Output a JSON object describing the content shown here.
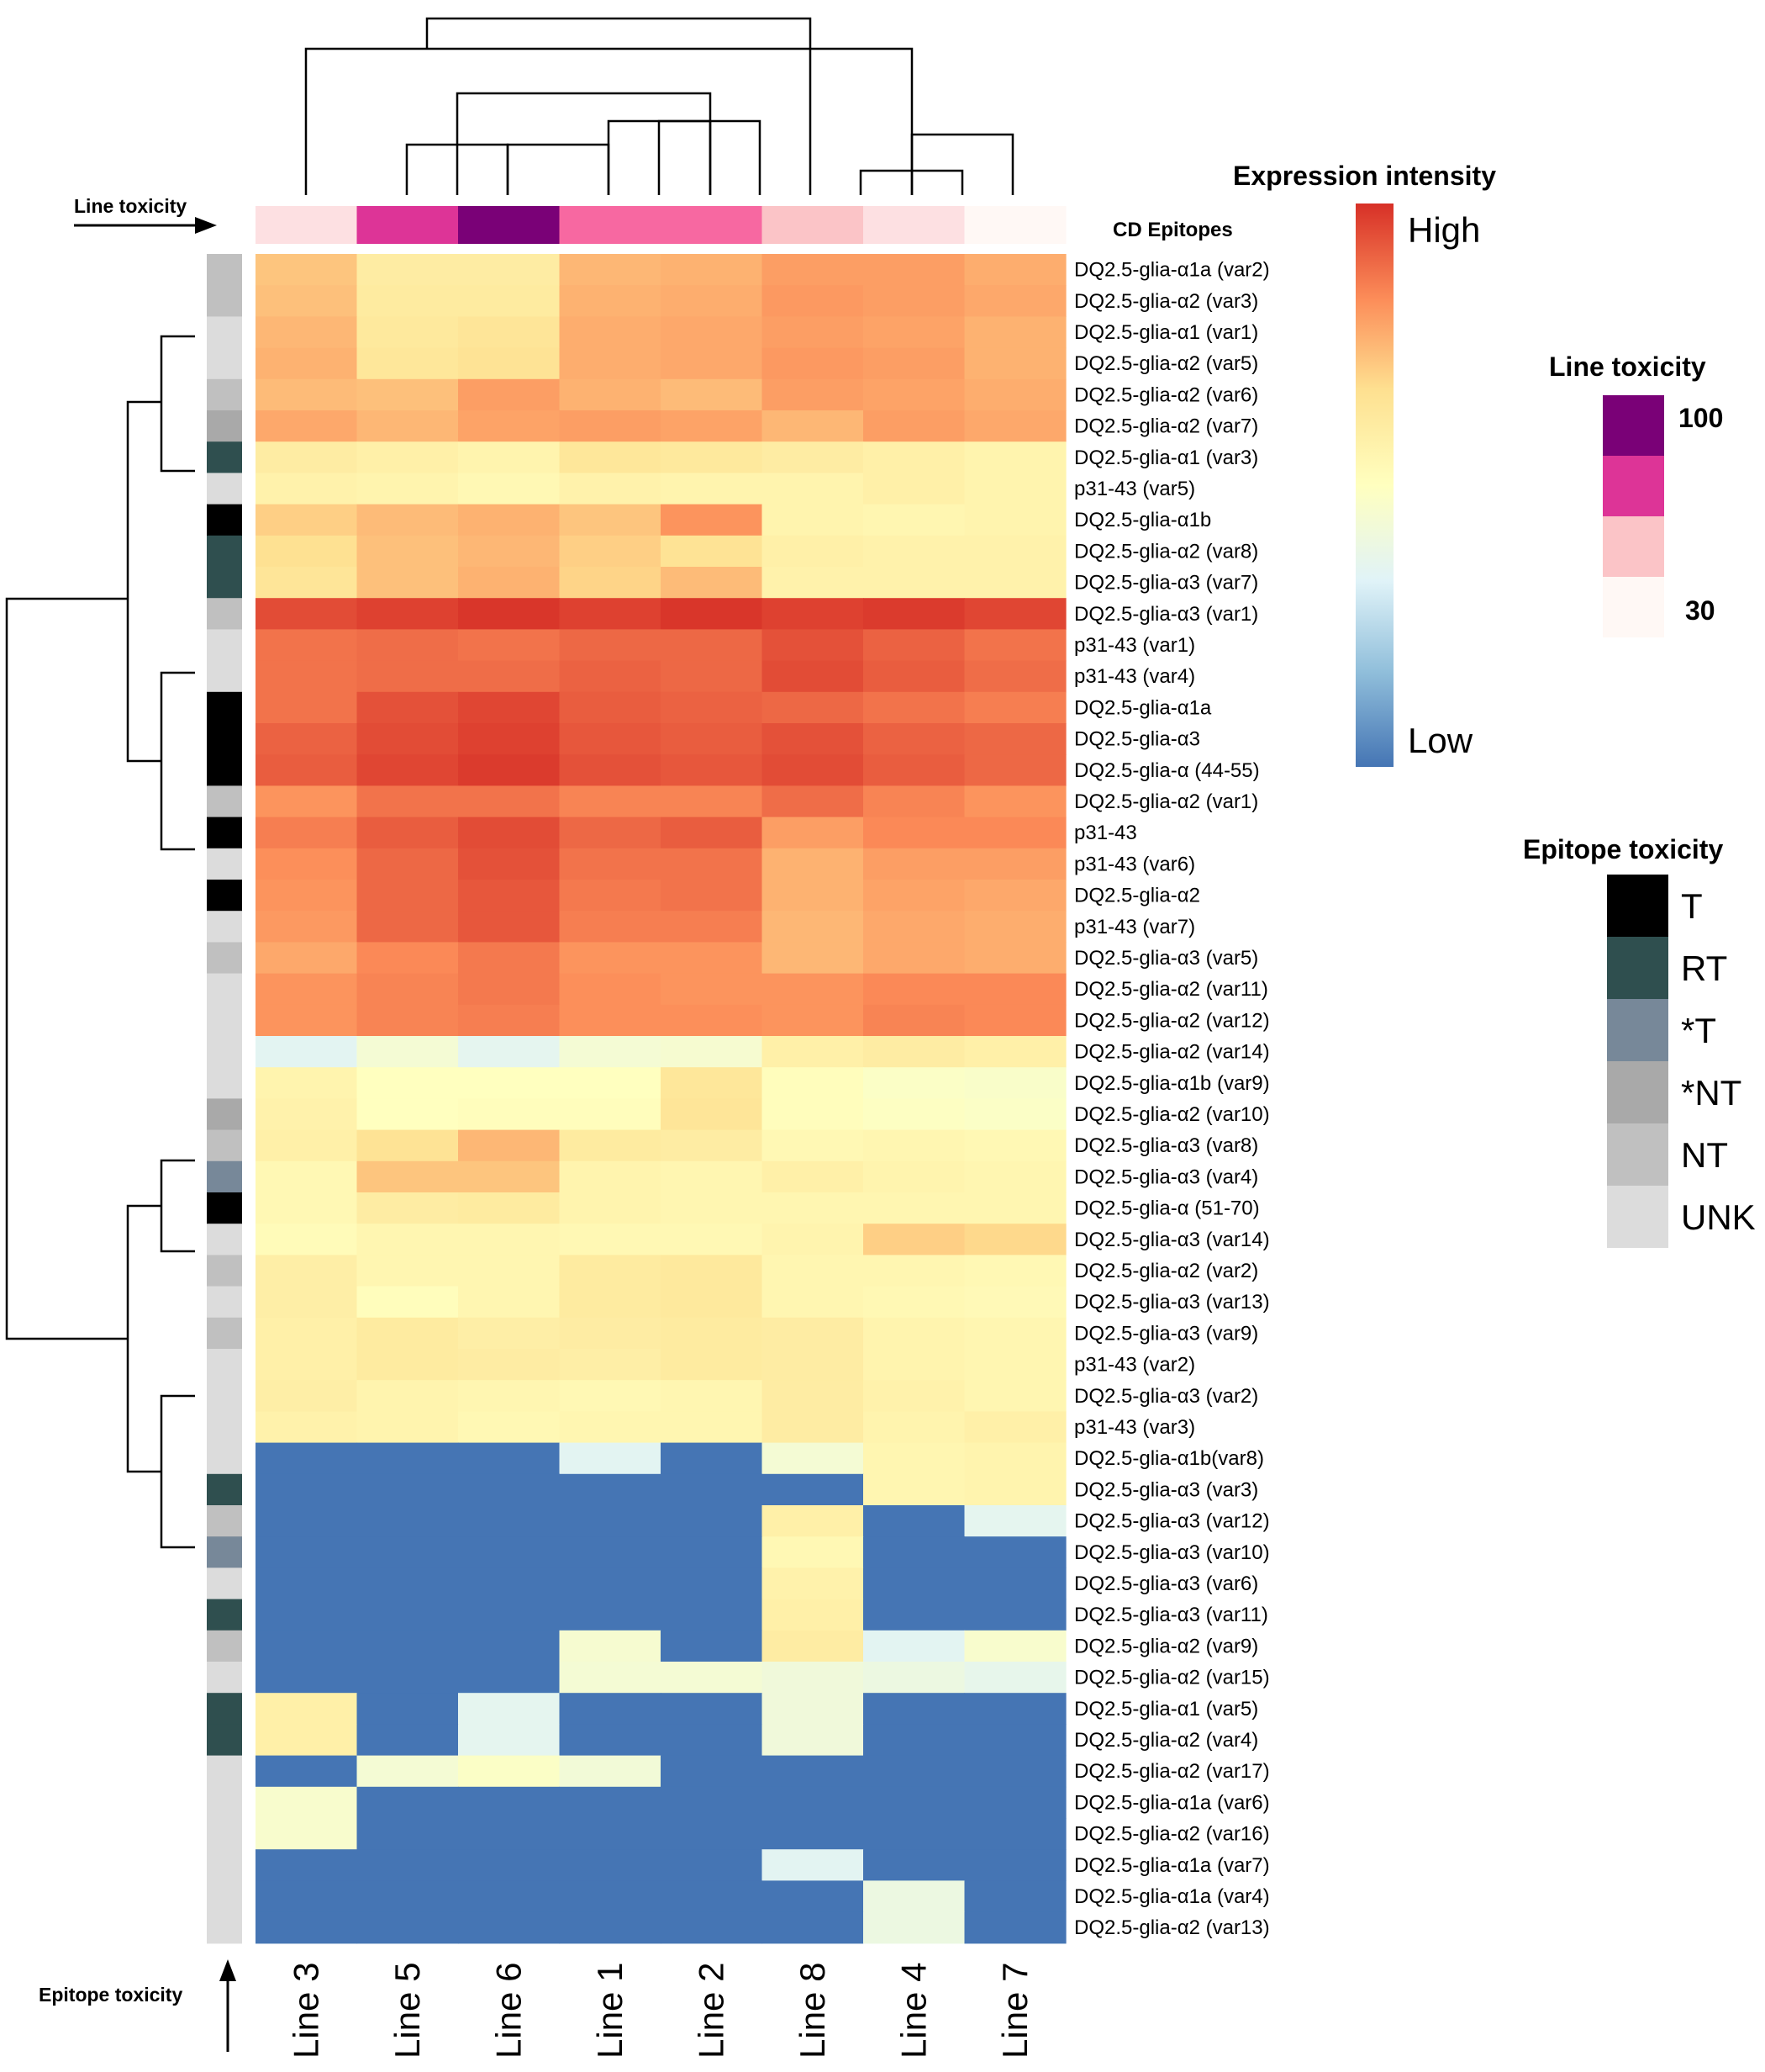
{
  "chart_data": {
    "type": "heatmap",
    "value_scale": "relative expression intensity, 0 = Low, 1 = High",
    "columns": [
      "Line 3",
      "Line 5",
      "Line 6",
      "Line 1",
      "Line 2",
      "Line 8",
      "Line 4",
      "Line 7"
    ],
    "line_toxicity_values": [
      35,
      80,
      100,
      65,
      62,
      45,
      38,
      30
    ],
    "rows": [
      {
        "label": "DQ2.5-glia-α1a (var2)",
        "epitope_toxicity": "NT",
        "values": [
          0.72,
          0.6,
          0.6,
          0.75,
          0.76,
          0.8,
          0.8,
          0.77
        ]
      },
      {
        "label": "DQ2.5-glia-α2 (var3)",
        "epitope_toxicity": "NT",
        "values": [
          0.73,
          0.61,
          0.61,
          0.76,
          0.77,
          0.81,
          0.8,
          0.78
        ]
      },
      {
        "label": "DQ2.5-glia-α1 (var1)",
        "epitope_toxicity": "UNK",
        "values": [
          0.75,
          0.62,
          0.64,
          0.77,
          0.78,
          0.8,
          0.79,
          0.76
        ]
      },
      {
        "label": "DQ2.5-glia-α2 (var5)",
        "epitope_toxicity": "UNK",
        "values": [
          0.76,
          0.63,
          0.65,
          0.77,
          0.78,
          0.81,
          0.8,
          0.76
        ]
      },
      {
        "label": "DQ2.5-glia-α2 (var6)",
        "epitope_toxicity": "NT",
        "values": [
          0.74,
          0.73,
          0.8,
          0.76,
          0.74,
          0.8,
          0.79,
          0.77
        ]
      },
      {
        "label": "DQ2.5-glia-α2 (var7)",
        "epitope_toxicity": "*NT",
        "values": [
          0.78,
          0.75,
          0.79,
          0.8,
          0.79,
          0.75,
          0.8,
          0.78
        ]
      },
      {
        "label": "DQ2.5-glia-α1 (var3)",
        "epitope_toxicity": "RT",
        "values": [
          0.6,
          0.58,
          0.56,
          0.63,
          0.62,
          0.6,
          0.58,
          0.56
        ]
      },
      {
        "label": "p31-43 (var5)",
        "epitope_toxicity": "UNK",
        "values": [
          0.57,
          0.56,
          0.54,
          0.57,
          0.56,
          0.56,
          0.58,
          0.56
        ]
      },
      {
        "label": "DQ2.5-glia-α1b",
        "epitope_toxicity": "T",
        "values": [
          0.7,
          0.74,
          0.76,
          0.72,
          0.82,
          0.56,
          0.55,
          0.56
        ]
      },
      {
        "label": "DQ2.5-glia-α2 (var8)",
        "epitope_toxicity": "RT",
        "values": [
          0.66,
          0.73,
          0.75,
          0.7,
          0.65,
          0.58,
          0.57,
          0.57
        ]
      },
      {
        "label": "DQ2.5-glia-α3 (var7)",
        "epitope_toxicity": "RT",
        "values": [
          0.64,
          0.73,
          0.76,
          0.69,
          0.74,
          0.57,
          0.57,
          0.57
        ]
      },
      {
        "label": "DQ2.5-glia-α3 (var1)",
        "epitope_toxicity": "NT",
        "values": [
          0.95,
          0.97,
          0.99,
          0.97,
          0.99,
          0.97,
          0.98,
          0.96
        ]
      },
      {
        "label": "p31-43 (var1)",
        "epitope_toxicity": "UNK",
        "values": [
          0.88,
          0.89,
          0.88,
          0.9,
          0.9,
          0.94,
          0.91,
          0.88
        ]
      },
      {
        "label": "p31-43 (var4)",
        "epitope_toxicity": "UNK",
        "values": [
          0.88,
          0.89,
          0.89,
          0.91,
          0.9,
          0.95,
          0.92,
          0.89
        ]
      },
      {
        "label": "DQ2.5-glia-α1a",
        "epitope_toxicity": "T",
        "values": [
          0.88,
          0.94,
          0.96,
          0.92,
          0.91,
          0.9,
          0.88,
          0.86
        ]
      },
      {
        "label": "DQ2.5-glia-α3",
        "epitope_toxicity": "T",
        "values": [
          0.91,
          0.95,
          0.97,
          0.93,
          0.92,
          0.94,
          0.91,
          0.9
        ]
      },
      {
        "label": "DQ2.5-glia-α (44-55)",
        "epitope_toxicity": "T",
        "values": [
          0.92,
          0.96,
          0.98,
          0.94,
          0.93,
          0.95,
          0.92,
          0.9
        ]
      },
      {
        "label": "DQ2.5-glia-α2 (var1)",
        "epitope_toxicity": "NT",
        "values": [
          0.82,
          0.88,
          0.88,
          0.85,
          0.85,
          0.89,
          0.85,
          0.82
        ]
      },
      {
        "label": "p31-43",
        "epitope_toxicity": "T",
        "values": [
          0.86,
          0.92,
          0.95,
          0.9,
          0.92,
          0.8,
          0.84,
          0.84
        ]
      },
      {
        "label": "p31-43 (var6)",
        "epitope_toxicity": "UNK",
        "values": [
          0.83,
          0.9,
          0.94,
          0.88,
          0.88,
          0.76,
          0.8,
          0.8
        ]
      },
      {
        "label": "DQ2.5-glia-α2",
        "epitope_toxicity": "T",
        "values": [
          0.82,
          0.9,
          0.93,
          0.87,
          0.88,
          0.76,
          0.79,
          0.78
        ]
      },
      {
        "label": "p31-43 (var7)",
        "epitope_toxicity": "UNK",
        "values": [
          0.81,
          0.9,
          0.93,
          0.86,
          0.86,
          0.75,
          0.78,
          0.77
        ]
      },
      {
        "label": "DQ2.5-glia-α3 (var5)",
        "epitope_toxicity": "NT",
        "values": [
          0.78,
          0.84,
          0.87,
          0.82,
          0.82,
          0.75,
          0.78,
          0.77
        ]
      },
      {
        "label": "DQ2.5-glia-α2 (var11)",
        "epitope_toxicity": "UNK",
        "values": [
          0.82,
          0.85,
          0.87,
          0.83,
          0.82,
          0.82,
          0.84,
          0.84
        ]
      },
      {
        "label": "DQ2.5-glia-α2 (var12)",
        "epitope_toxicity": "UNK",
        "values": [
          0.82,
          0.85,
          0.86,
          0.83,
          0.83,
          0.82,
          0.85,
          0.84
        ]
      },
      {
        "label": "DQ2.5-glia-α2 (var14)",
        "epitope_toxicity": "UNK",
        "values": [
          0.35,
          0.44,
          0.36,
          0.44,
          0.45,
          0.58,
          0.6,
          0.58
        ]
      },
      {
        "label": "DQ2.5-glia-α1b (var9)",
        "epitope_toxicity": "UNK",
        "values": [
          0.56,
          0.5,
          0.5,
          0.5,
          0.63,
          0.51,
          0.48,
          0.47
        ]
      },
      {
        "label": "DQ2.5-glia-α2 (var10)",
        "epitope_toxicity": "*NT",
        "values": [
          0.57,
          0.5,
          0.51,
          0.51,
          0.64,
          0.51,
          0.49,
          0.48
        ]
      },
      {
        "label": "DQ2.5-glia-α3 (var8)",
        "epitope_toxicity": "NT",
        "values": [
          0.58,
          0.65,
          0.75,
          0.61,
          0.6,
          0.54,
          0.55,
          0.54
        ]
      },
      {
        "label": "DQ2.5-glia-α3 (var4)",
        "epitope_toxicity": "*T",
        "values": [
          0.54,
          0.72,
          0.72,
          0.56,
          0.55,
          0.58,
          0.56,
          0.55
        ]
      },
      {
        "label": "DQ2.5-glia-α (51-70)",
        "epitope_toxicity": "T",
        "values": [
          0.54,
          0.6,
          0.61,
          0.56,
          0.55,
          0.55,
          0.55,
          0.55
        ]
      },
      {
        "label": "DQ2.5-glia-α3 (var14)",
        "epitope_toxicity": "UNK",
        "values": [
          0.52,
          0.55,
          0.55,
          0.54,
          0.54,
          0.56,
          0.7,
          0.68
        ]
      },
      {
        "label": "DQ2.5-glia-α2 (var2)",
        "epitope_toxicity": "NT",
        "values": [
          0.59,
          0.55,
          0.55,
          0.61,
          0.62,
          0.55,
          0.55,
          0.54
        ]
      },
      {
        "label": "DQ2.5-glia-α3 (var13)",
        "epitope_toxicity": "UNK",
        "values": [
          0.59,
          0.51,
          0.55,
          0.61,
          0.62,
          0.55,
          0.54,
          0.53
        ]
      },
      {
        "label": "DQ2.5-glia-α3 (var9)",
        "epitope_toxicity": "NT",
        "values": [
          0.58,
          0.61,
          0.59,
          0.6,
          0.61,
          0.6,
          0.56,
          0.55
        ]
      },
      {
        "label": "p31-43 (var2)",
        "epitope_toxicity": "UNK",
        "values": [
          0.58,
          0.61,
          0.6,
          0.59,
          0.61,
          0.6,
          0.56,
          0.55
        ]
      },
      {
        "label": "DQ2.5-glia-α3 (var2)",
        "epitope_toxicity": "UNK",
        "values": [
          0.59,
          0.56,
          0.55,
          0.54,
          0.55,
          0.6,
          0.57,
          0.55
        ]
      },
      {
        "label": "p31-43 (var3)",
        "epitope_toxicity": "UNK",
        "values": [
          0.57,
          0.56,
          0.54,
          0.55,
          0.55,
          0.6,
          0.56,
          0.58
        ]
      },
      {
        "label": "DQ2.5-glia-α1b(var8)",
        "epitope_toxicity": "UNK",
        "values": [
          0.0,
          0.0,
          0.0,
          0.35,
          0.0,
          0.44,
          0.55,
          0.56
        ]
      },
      {
        "label": "DQ2.5-glia-α3 (var3)",
        "epitope_toxicity": "RT",
        "values": [
          0.0,
          0.0,
          0.0,
          0.0,
          0.0,
          0.0,
          0.55,
          0.56
        ]
      },
      {
        "label": "DQ2.5-glia-α3 (var12)",
        "epitope_toxicity": "NT",
        "values": [
          0.0,
          0.0,
          0.0,
          0.0,
          0.0,
          0.58,
          0.0,
          0.36
        ]
      },
      {
        "label": "DQ2.5-glia-α3 (var10)",
        "epitope_toxicity": "*T",
        "values": [
          0.0,
          0.0,
          0.0,
          0.0,
          0.0,
          0.54,
          0.0,
          0.0
        ]
      },
      {
        "label": "DQ2.5-glia-α3 (var6)",
        "epitope_toxicity": "UNK",
        "values": [
          0.0,
          0.0,
          0.0,
          0.0,
          0.0,
          0.57,
          0.0,
          0.0
        ]
      },
      {
        "label": "DQ2.5-glia-α3 (var11)",
        "epitope_toxicity": "RT",
        "values": [
          0.0,
          0.0,
          0.0,
          0.0,
          0.0,
          0.58,
          0.0,
          0.0
        ]
      },
      {
        "label": "DQ2.5-glia-α2 (var9)",
        "epitope_toxicity": "NT",
        "values": [
          0.0,
          0.0,
          0.0,
          0.45,
          0.0,
          0.6,
          0.35,
          0.46
        ]
      },
      {
        "label": "DQ2.5-glia-α2 (var15)",
        "epitope_toxicity": "UNK",
        "values": [
          0.0,
          0.0,
          0.0,
          0.44,
          0.44,
          0.42,
          0.4,
          0.37
        ]
      },
      {
        "label": "DQ2.5-glia-α1 (var5)",
        "epitope_toxicity": "RT",
        "values": [
          0.58,
          0.0,
          0.36,
          0.0,
          0.0,
          0.42,
          0.0,
          0.0
        ]
      },
      {
        "label": "DQ2.5-glia-α2 (var4)",
        "epitope_toxicity": "RT",
        "values": [
          0.58,
          0.0,
          0.36,
          0.0,
          0.0,
          0.42,
          0.0,
          0.0
        ]
      },
      {
        "label": "DQ2.5-glia-α2 (var17)",
        "epitope_toxicity": "UNK",
        "values": [
          0.0,
          0.44,
          0.48,
          0.43,
          0.0,
          0.0,
          0.0,
          0.0
        ]
      },
      {
        "label": "DQ2.5-glia-α1a (var6)",
        "epitope_toxicity": "UNK",
        "values": [
          0.46,
          0.0,
          0.0,
          0.0,
          0.0,
          0.0,
          0.0,
          0.0
        ]
      },
      {
        "label": "DQ2.5-glia-α2 (var16)",
        "epitope_toxicity": "UNK",
        "values": [
          0.46,
          0.0,
          0.0,
          0.0,
          0.0,
          0.0,
          0.0,
          0.0
        ]
      },
      {
        "label": "DQ2.5-glia-α1a (var7)",
        "epitope_toxicity": "UNK",
        "values": [
          0.0,
          0.0,
          0.0,
          0.0,
          0.0,
          0.35,
          0.0,
          0.0
        ]
      },
      {
        "label": "DQ2.5-glia-α1a (var4)",
        "epitope_toxicity": "UNK",
        "values": [
          0.0,
          0.0,
          0.0,
          0.0,
          0.0,
          0.0,
          0.4,
          0.0
        ]
      },
      {
        "label": "DQ2.5-glia-α2 (var13)",
        "epitope_toxicity": "UNK",
        "values": [
          0.0,
          0.0,
          0.0,
          0.0,
          0.0,
          0.0,
          0.4,
          0.0
        ]
      }
    ],
    "color_scale": [
      "#4575b4",
      "#91bfdb",
      "#e0f3f8",
      "#ffffbf",
      "#fee090",
      "#fc8d59",
      "#d73027"
    ],
    "line_toxicity_colors": [
      {
        "min": 90,
        "color": "#7a0177"
      },
      {
        "min": 70,
        "color": "#dd3497"
      },
      {
        "min": 55,
        "color": "#f768a1"
      },
      {
        "min": 42,
        "color": "#fbc4c7"
      },
      {
        "min": 34,
        "color": "#fde0e2"
      },
      {
        "min": 0,
        "color": "#fff8f5"
      }
    ],
    "epitope_toxicity_colors": {
      "T": "#000000",
      "RT": "#2f4f4f",
      "*T": "#778899",
      "*NT": "#a9a9a9",
      "NT": "#c0c0c0",
      "UNK": "#dcdcdc"
    }
  },
  "labels": {
    "line_toxicity_axis": "Line toxicity",
    "epitope_toxicity_axis": "Epitope toxicity",
    "cd_epitopes": "CD Epitopes"
  },
  "legend_expression": {
    "title": "Expression intensity",
    "high": "High",
    "low": "Low"
  },
  "legend_line": {
    "title": "Line toxicity",
    "max": "100",
    "min": "30",
    "swatch_colors": [
      "#7a0177",
      "#dd3497",
      "#fbc4c7",
      "#fff8f5"
    ]
  },
  "legend_epitope": {
    "title": "Epitope toxicity",
    "items": [
      {
        "label": "T",
        "color": "#000000"
      },
      {
        "label": "RT",
        "color": "#2f4f4f"
      },
      {
        "label": "*T",
        "color": "#778899"
      },
      {
        "label": "*NT",
        "color": "#a9a9a9"
      },
      {
        "label": "NT",
        "color": "#c0c0c0"
      },
      {
        "label": "UNK",
        "color": "#dcdcdc"
      }
    ]
  }
}
